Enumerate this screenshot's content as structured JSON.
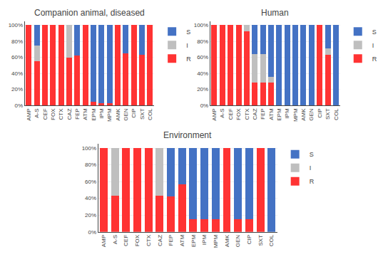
{
  "chart_data": [
    {
      "type": "bar",
      "title": "Companion animal, diseased",
      "categories": [
        "AMP",
        "A-S",
        "CEF",
        "FOX",
        "CTX",
        "CAZ",
        "FEP",
        "ATM",
        "EPM",
        "IPM",
        "MPM",
        "AMK",
        "GEN",
        "CIP",
        "SXT",
        "COL"
      ],
      "series": [
        {
          "name": "R",
          "color": "#FF3333",
          "values": [
            100,
            55,
            100,
            100,
            100,
            60,
            62,
            100,
            5,
            3,
            3,
            100,
            65,
            100,
            63,
            100
          ]
        },
        {
          "name": "I",
          "color": "#BFBFBF",
          "values": [
            0,
            20,
            0,
            0,
            0,
            40,
            0,
            0,
            0,
            0,
            0,
            0,
            0,
            0,
            0,
            0
          ]
        },
        {
          "name": "S",
          "color": "#4472C4",
          "values": [
            0,
            25,
            0,
            0,
            0,
            0,
            38,
            0,
            95,
            97,
            97,
            0,
            35,
            0,
            37,
            0
          ]
        }
      ],
      "stacked": true,
      "ylim": [
        0,
        105
      ],
      "yticks": [
        {
          "value": 0,
          "label": "0%"
        },
        {
          "value": 20,
          "label": "20%"
        },
        {
          "value": 40,
          "label": "40%"
        },
        {
          "value": 60,
          "label": "60%"
        },
        {
          "value": 80,
          "label": "80%"
        },
        {
          "value": 100,
          "label": "100%"
        }
      ],
      "grid": true,
      "legend": "right"
    },
    {
      "type": "bar",
      "title": "Human",
      "categories": [
        "AMP",
        "A-S",
        "CEF",
        "FOX",
        "CTX",
        "CAZ",
        "FEP",
        "ATM",
        "EPM",
        "IPM",
        "MPM",
        "AMK",
        "GEN",
        "CIP",
        "SXT",
        "COL"
      ],
      "series": [
        {
          "name": "R",
          "color": "#FF3333",
          "values": [
            100,
            100,
            100,
            100,
            92,
            29,
            29,
            29,
            0,
            0,
            0,
            0,
            0,
            100,
            63,
            0
          ]
        },
        {
          "name": "I",
          "color": "#BFBFBF",
          "values": [
            0,
            0,
            0,
            0,
            8,
            35,
            35,
            7,
            0,
            0,
            0,
            0,
            0,
            0,
            8,
            0
          ]
        },
        {
          "name": "S",
          "color": "#4472C4",
          "values": [
            0,
            0,
            0,
            0,
            0,
            36,
            36,
            64,
            100,
            100,
            100,
            100,
            100,
            0,
            29,
            100
          ]
        }
      ],
      "stacked": true,
      "ylim": [
        0,
        105
      ],
      "yticks": [
        {
          "value": 0,
          "label": "0%"
        },
        {
          "value": 20,
          "label": "20%"
        },
        {
          "value": 40,
          "label": "40%"
        },
        {
          "value": 60,
          "label": "60%"
        },
        {
          "value": 80,
          "label": "80%"
        },
        {
          "value": 100,
          "label": "100%"
        }
      ],
      "grid": true,
      "legend": "right"
    },
    {
      "type": "bar",
      "title": "Environment",
      "categories": [
        "AMP",
        "A-S",
        "CEF",
        "FOX",
        "CTX",
        "CAZ",
        "FEP",
        "ATM",
        "EPM",
        "IPM",
        "MPM",
        "AMK",
        "GEN",
        "CIP",
        "SXT",
        "COL"
      ],
      "series": [
        {
          "name": "R",
          "color": "#FF3333",
          "values": [
            100,
            43,
            100,
            100,
            100,
            43,
            42,
            57,
            15,
            15,
            15,
            100,
            15,
            15,
            100,
            0
          ]
        },
        {
          "name": "I",
          "color": "#BFBFBF",
          "values": [
            0,
            57,
            0,
            0,
            0,
            57,
            0,
            0,
            0,
            0,
            0,
            0,
            0,
            0,
            0,
            0
          ]
        },
        {
          "name": "S",
          "color": "#4472C4",
          "values": [
            0,
            0,
            0,
            0,
            0,
            0,
            58,
            43,
            85,
            85,
            85,
            0,
            85,
            85,
            0,
            100
          ]
        }
      ],
      "stacked": true,
      "ylim": [
        0,
        105
      ],
      "yticks": [
        {
          "value": 0,
          "label": "0%"
        },
        {
          "value": 20,
          "label": "20%"
        },
        {
          "value": 40,
          "label": "40%"
        },
        {
          "value": 60,
          "label": "60%"
        },
        {
          "value": 80,
          "label": "80%"
        },
        {
          "value": 100,
          "label": "100%"
        }
      ],
      "grid": true,
      "legend": "right"
    }
  ]
}
